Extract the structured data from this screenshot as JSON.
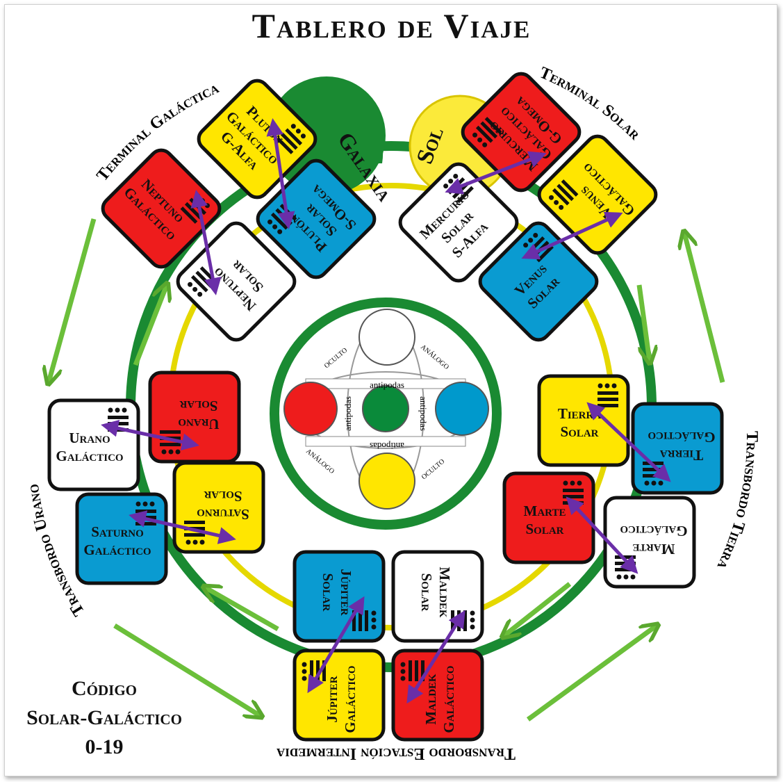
{
  "title": "Tablero de Viaje",
  "code": {
    "line1": "Código",
    "line2": "Solar-Galáctico",
    "line3": "0-19"
  },
  "labels": {
    "terminal_galactica": "Terminal Galáctica",
    "terminal_solar": "Terminal Solar",
    "transbordo_urano": "Transbordo Urano",
    "transbordo_tierra": "Transbordo Tierra",
    "transbordo_intermedia": "Transbordo Estación Intermedia",
    "galaxia": "Galaxia",
    "sol": "Sol"
  },
  "center": {
    "oculto": "oculto",
    "analogo": "análogo",
    "antipodas": "antipodas",
    "colors": {
      "top": "#ffffff",
      "left": "#ee1c1c",
      "right": "#0099cc",
      "bottom": "#ffe600",
      "middle": "#0a8a3a"
    }
  },
  "colors": {
    "red": "#ee1c1c",
    "yellow": "#ffe600",
    "blue": "#0a9bd1",
    "white": "#ffffff",
    "green": "#1a8a32",
    "arrow": "#6a2ea8"
  },
  "tiles": {
    "neptuno_galactico": [
      "Neptuno",
      "Galáctico"
    ],
    "pluton_galactico": [
      "Plutón",
      "Galáctico",
      "G-Alfa"
    ],
    "neptuno_solar": [
      "Neptuno",
      "Solar"
    ],
    "pluton_solar": [
      "Plutón",
      "Solar",
      "S-Omega"
    ],
    "mercurio_galactico": [
      "Mercurio",
      "Galáctico",
      "G-Omega"
    ],
    "mercurio_solar": [
      "Mercurio",
      "Solar",
      "S-Alfa"
    ],
    "venus_galactico": [
      "Venus",
      "Galáctico"
    ],
    "venus_solar": [
      "Venus",
      "Solar"
    ],
    "urano_solar": [
      "Urano",
      "Solar"
    ],
    "urano_galactico": [
      "Urano",
      "Galáctico"
    ],
    "saturno_solar": [
      "Saturno",
      "Solar"
    ],
    "saturno_galactico": [
      "Saturno",
      "Galáctico"
    ],
    "tierra_solar": [
      "Tierra",
      "Solar"
    ],
    "tierra_galactico": [
      "Tierra",
      "Galáctico"
    ],
    "marte_solar": [
      "Marte",
      "Solar"
    ],
    "marte_galactico": [
      "Marte",
      "Galáctico"
    ],
    "jupiter_solar": [
      "Júpiter",
      "Solar"
    ],
    "maldek_solar": [
      "Maldek",
      "Solar"
    ],
    "jupiter_galactico": [
      "Júpiter",
      "Galáctico"
    ],
    "maldek_galactico": [
      "Maldek",
      "Galáctico"
    ]
  }
}
